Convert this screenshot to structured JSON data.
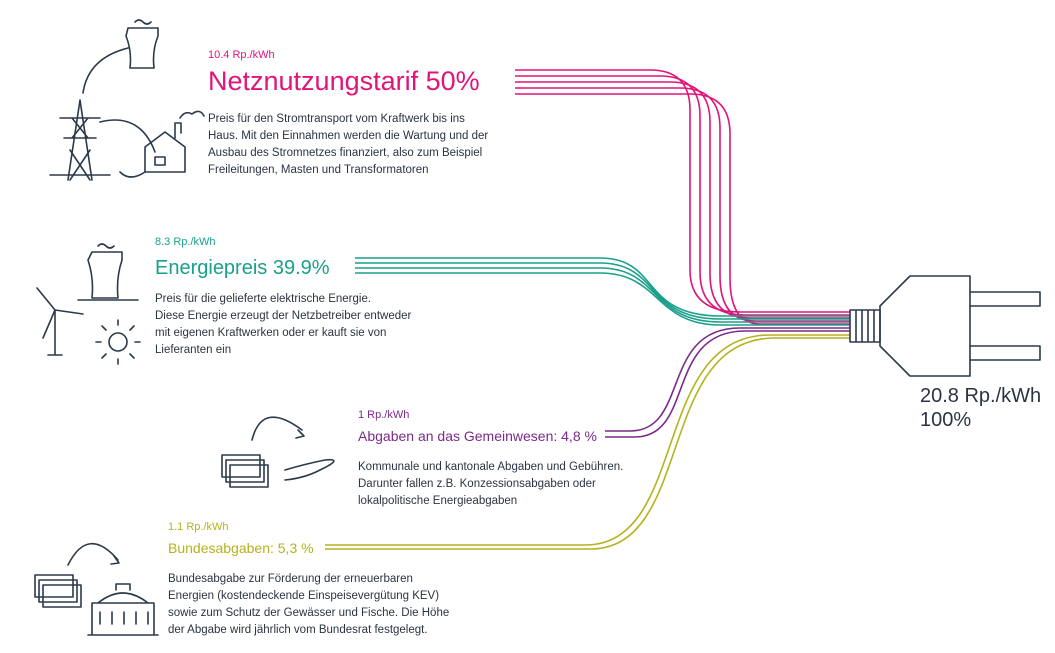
{
  "sections": [
    {
      "price": "10.4 Rp./kWh",
      "title": "Netznutzungstarif 50%",
      "lines": [
        "Preis für den Stromtransport vom Kraftwerk bis ins",
        "Haus. Mit den Einnahmen werden die Wartung und der",
        "Ausbau des Stromnetzes finanziert, also zum Beispiel",
        "Freileitungen, Masten und Transformatoren"
      ]
    },
    {
      "price": "8.3 Rp./kWh",
      "title": "Energiepreis 39.9%",
      "lines": [
        "Preis für die gelieferte elektrische Energie.",
        "Diese Energie erzeugt der Netzbetreiber entweder",
        "mit eigenen Kraftwerken oder er kauft sie von",
        "Lieferanten ein"
      ]
    },
    {
      "price": "1 Rp./kWh",
      "title": "Abgaben an das Gemeinwesen: 4,8 %",
      "lines": [
        "Kommunale und kantonale Abgaben und Gebühren.",
        "Darunter fallen z.B. Konzessionsabgaben oder",
        "lokalpolitische Energieabgaben"
      ]
    },
    {
      "price": "1.1 Rp./kWh",
      "title": "Bundesabgaben: 5,3 %",
      "lines": [
        "Bundesabgabe zur Förderung der erneuerbaren",
        "Energien (kostendeckende Einspeisevergütung KEV)",
        "sowie zum Schutz der Gewässer und Fische. Die Höhe",
        "der Abgabe wird jährlich vom Bundesrat festgelegt."
      ]
    }
  ],
  "total": {
    "price": "20.8 Rp./kWh",
    "percent": "100%"
  }
}
